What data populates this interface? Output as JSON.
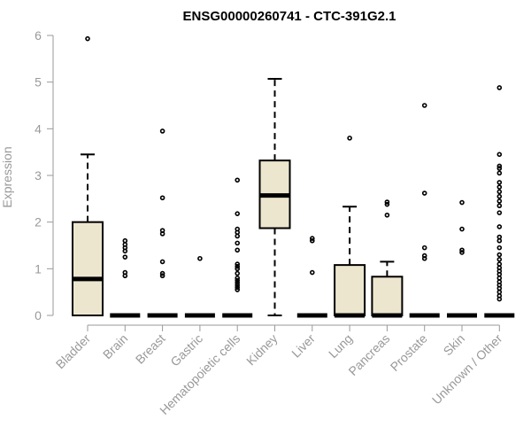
{
  "chart_data": {
    "type": "box",
    "title": "ENSG00000260741 - CTC-391G2.1",
    "xlabel": "",
    "ylabel": "Expression",
    "ylim": [
      0,
      6
    ],
    "yticks": [
      0,
      1,
      2,
      3,
      4,
      5,
      6
    ],
    "grid": false,
    "box_fill": "#ede6cf",
    "line_color": "#000000",
    "axis_color": "#999999",
    "categories": [
      "Bladder",
      "Brain",
      "Breast",
      "Gastric",
      "Hematopoietic cells",
      "Kidney",
      "Liver",
      "Lung",
      "Pancreas",
      "Prostate",
      "Skin",
      "Unknown / Other"
    ],
    "boxes": [
      {
        "category": "Bladder",
        "q1": 0,
        "median": 0.78,
        "q3": 2.0,
        "whisker_low": 0,
        "whisker_high": 3.45,
        "outliers": [
          5.93
        ]
      },
      {
        "category": "Brain",
        "q1": 0,
        "median": 0,
        "q3": 0,
        "whisker_low": 0,
        "whisker_high": 0,
        "outliers": [
          0.85,
          0.92,
          1.25,
          1.38,
          1.45,
          1.52,
          1.6
        ]
      },
      {
        "category": "Breast",
        "q1": 0,
        "median": 0,
        "q3": 0,
        "whisker_low": 0,
        "whisker_high": 0,
        "outliers": [
          0.85,
          0.9,
          1.15,
          1.75,
          1.82,
          2.52,
          3.95
        ]
      },
      {
        "category": "Gastric",
        "q1": 0,
        "median": 0,
        "q3": 0,
        "whisker_low": 0,
        "whisker_high": 0,
        "outliers": [
          1.22
        ]
      },
      {
        "category": "Hematopoietic cells",
        "q1": 0,
        "median": 0,
        "q3": 0,
        "whisker_low": 0,
        "whisker_high": 0,
        "outliers": [
          0.55,
          0.6,
          0.65,
          0.7,
          0.75,
          0.8,
          0.9,
          1.0,
          1.05,
          1.1,
          1.4,
          1.55,
          1.7,
          1.78,
          1.85,
          2.18,
          2.9
        ]
      },
      {
        "category": "Kidney",
        "q1": 1.87,
        "median": 2.57,
        "q3": 3.32,
        "whisker_low": 0,
        "whisker_high": 5.07,
        "outliers": []
      },
      {
        "category": "Liver",
        "q1": 0,
        "median": 0,
        "q3": 0,
        "whisker_low": 0,
        "whisker_high": 0,
        "outliers": [
          0.92,
          1.6,
          1.65
        ]
      },
      {
        "category": "Lung",
        "q1": 0,
        "median": 0,
        "q3": 1.08,
        "whisker_low": 0,
        "whisker_high": 2.33,
        "outliers": [
          3.8
        ]
      },
      {
        "category": "Pancreas",
        "q1": 0,
        "median": 0,
        "q3": 0.83,
        "whisker_low": 0,
        "whisker_high": 1.15,
        "outliers": [
          2.15,
          2.38,
          2.43
        ]
      },
      {
        "category": "Prostate",
        "q1": 0,
        "median": 0,
        "q3": 0,
        "whisker_low": 0,
        "whisker_high": 0,
        "outliers": [
          1.22,
          1.28,
          1.45,
          2.62,
          4.5
        ]
      },
      {
        "category": "Skin",
        "q1": 0,
        "median": 0,
        "q3": 0,
        "whisker_low": 0,
        "whisker_high": 0,
        "outliers": [
          1.35,
          1.4,
          1.85,
          2.42
        ]
      },
      {
        "category": "Unknown / Other",
        "q1": 0,
        "median": 0,
        "q3": 0,
        "whisker_low": 0,
        "whisker_high": 0,
        "outliers": [
          0.35,
          0.42,
          0.5,
          0.58,
          0.65,
          0.72,
          0.8,
          0.88,
          0.95,
          1.02,
          1.1,
          1.2,
          1.3,
          1.45,
          1.6,
          1.68,
          1.9,
          2.2,
          2.35,
          2.45,
          2.55,
          2.65,
          2.75,
          2.85,
          3.05,
          3.15,
          3.2,
          3.45,
          4.88
        ]
      }
    ]
  }
}
